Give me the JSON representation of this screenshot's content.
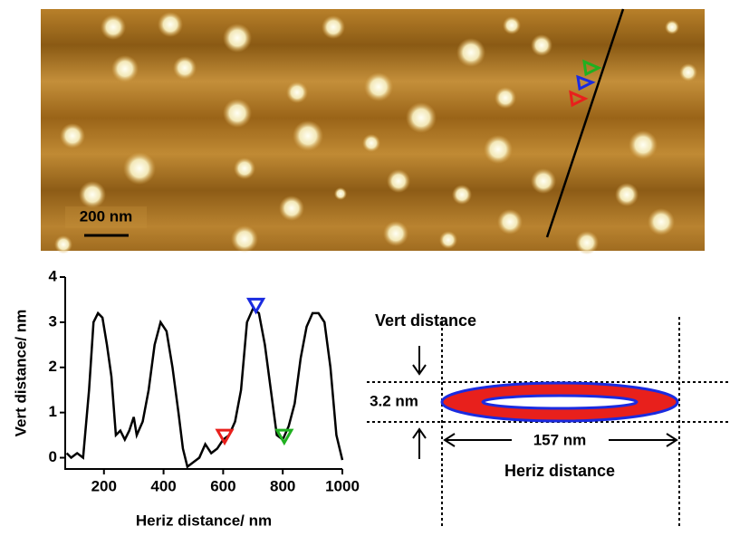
{
  "image": {
    "scale_bar": "200 nm"
  },
  "chart_data": {
    "type": "line",
    "x_label": "Heriz distance/ nm",
    "y_label": "Vert distance/ nm",
    "x": [
      75,
      90,
      110,
      130,
      150,
      165,
      180,
      195,
      210,
      225,
      240,
      255,
      270,
      285,
      300,
      310,
      330,
      350,
      370,
      390,
      410,
      430,
      450,
      465,
      480,
      500,
      520,
      540,
      560,
      580,
      600,
      620,
      640,
      660,
      680,
      700,
      720,
      740,
      760,
      780,
      800,
      820,
      840,
      860,
      880,
      900,
      920,
      940,
      960,
      980,
      1000
    ],
    "values": [
      0.1,
      0.0,
      0.1,
      0.0,
      1.5,
      3.0,
      3.2,
      3.1,
      2.5,
      1.8,
      0.5,
      0.6,
      0.4,
      0.6,
      0.9,
      0.5,
      0.8,
      1.5,
      2.5,
      3.0,
      2.8,
      2.0,
      1.0,
      0.2,
      -0.2,
      -0.1,
      0.0,
      0.3,
      0.1,
      0.2,
      0.4,
      0.5,
      0.8,
      1.5,
      3.0,
      3.3,
      3.2,
      2.5,
      1.5,
      0.5,
      0.4,
      0.7,
      1.2,
      2.2,
      2.9,
      3.2,
      3.2,
      3.0,
      2.0,
      0.5,
      -0.05
    ],
    "color": "#000000",
    "markers": [
      {
        "color": "#e8201c",
        "x": 605,
        "y": 0.45
      },
      {
        "color": "#1a2be0",
        "x": 710,
        "y": 3.35
      },
      {
        "color": "#20b020",
        "x": 805,
        "y": 0.45
      }
    ],
    "xlim": [
      70,
      1000
    ],
    "ylim": [
      -0.25,
      4
    ],
    "xticks": [
      200,
      400,
      600,
      800,
      1000
    ],
    "yticks": [
      0,
      1,
      2,
      3,
      4
    ]
  },
  "schematic": {
    "vert_label": "Vert distance",
    "height": "3.2 nm",
    "width": "157 nm",
    "heriz_label": "Heriz distance"
  }
}
